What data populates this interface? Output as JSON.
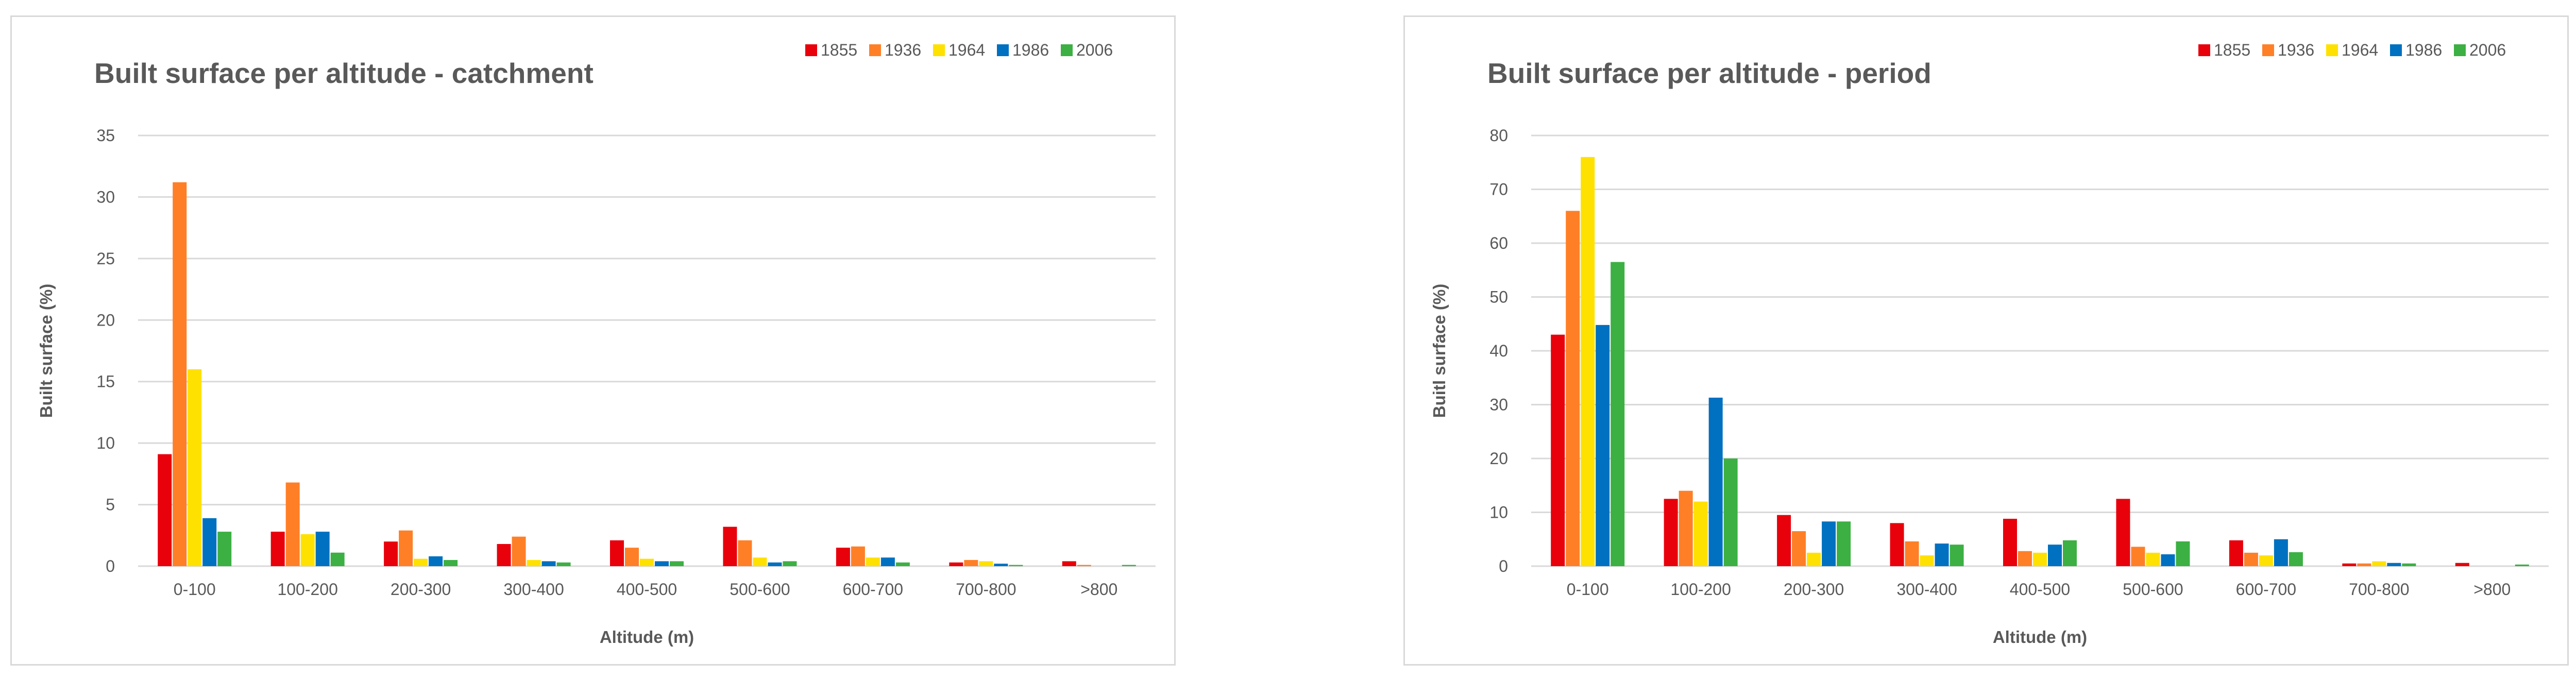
{
  "colors": {
    "1855": "#e8000b",
    "1936": "#ff7f27",
    "1964": "#ffe100",
    "1986": "#0070c0",
    "2006": "#3cb043",
    "grid": "#d9d9d9",
    "text": "#595959"
  },
  "chart_data": [
    {
      "type": "bar",
      "title": "Built surface per altitude - catchment",
      "xlabel": "Altitude (m)",
      "ylabel": "Built surface (%)",
      "ylim": [
        0,
        35
      ],
      "yticks": [
        0,
        5,
        10,
        15,
        20,
        25,
        30,
        35
      ],
      "grid": true,
      "legend": "top-right",
      "categories": [
        "0-100",
        "100-200",
        "200-300",
        "300-400",
        "400-500",
        "500-600",
        "600-700",
        "700-800",
        ">800"
      ],
      "series": [
        {
          "name": "1855",
          "values": [
            9.1,
            2.8,
            2.0,
            1.8,
            2.1,
            3.2,
            1.5,
            0.3,
            0.4
          ]
        },
        {
          "name": "1936",
          "values": [
            31.2,
            6.8,
            2.9,
            2.4,
            1.5,
            2.1,
            1.6,
            0.5,
            0.1
          ]
        },
        {
          "name": "1964",
          "values": [
            16.0,
            2.6,
            0.6,
            0.5,
            0.6,
            0.7,
            0.7,
            0.4,
            0.0
          ]
        },
        {
          "name": "1986",
          "values": [
            3.9,
            2.8,
            0.8,
            0.4,
            0.4,
            0.3,
            0.7,
            0.2,
            0.0
          ]
        },
        {
          "name": "2006",
          "values": [
            2.8,
            1.1,
            0.5,
            0.3,
            0.4,
            0.4,
            0.3,
            0.1,
            0.1
          ]
        }
      ]
    },
    {
      "type": "bar",
      "title": "Built surface per altitude - period",
      "xlabel": "Altitude (m)",
      "ylabel": "Buitl surface (%)",
      "ylim": [
        0,
        80
      ],
      "yticks": [
        0,
        10,
        20,
        30,
        40,
        50,
        60,
        70,
        80
      ],
      "grid": true,
      "legend": "top-right",
      "categories": [
        "0-100",
        "100-200",
        "200-300",
        "300-400",
        "400-500",
        "500-600",
        "600-700",
        "700-800",
        ">800"
      ],
      "series": [
        {
          "name": "1855",
          "values": [
            43.0,
            12.5,
            9.5,
            8.0,
            8.8,
            12.5,
            4.8,
            0.5,
            0.6
          ]
        },
        {
          "name": "1936",
          "values": [
            66.0,
            14.0,
            6.5,
            4.6,
            2.8,
            3.6,
            2.5,
            0.5,
            0.0
          ]
        },
        {
          "name": "1964",
          "values": [
            76.0,
            12.0,
            2.5,
            2.0,
            2.5,
            2.5,
            2.0,
            0.9,
            0.0
          ]
        },
        {
          "name": "1986",
          "values": [
            44.8,
            31.3,
            8.3,
            4.2,
            4.0,
            2.2,
            5.0,
            0.6,
            0.0
          ]
        },
        {
          "name": "2006",
          "values": [
            56.5,
            20.0,
            8.3,
            4.0,
            4.8,
            4.6,
            2.6,
            0.5,
            0.3
          ]
        }
      ]
    }
  ]
}
